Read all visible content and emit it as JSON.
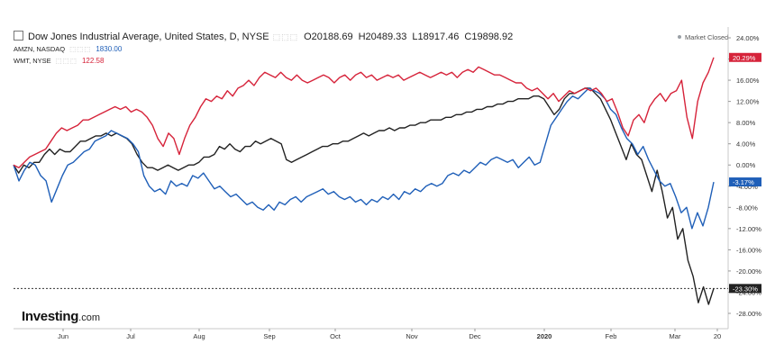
{
  "header": {
    "title": "Dow Jones Industrial Average, United States, D, NYSE",
    "open": "O20188.69",
    "high": "H20489.33",
    "low": "L18917.46",
    "close": "C19898.92"
  },
  "compare": [
    {
      "label": "AMZN, NASDAQ",
      "value": "1830.00",
      "color": "#1f5fb8"
    },
    {
      "label": "WMT, NYSE",
      "value": "122.58",
      "color": "#d6233a"
    }
  ],
  "market_status": "Market Closed",
  "brand": {
    "name": "Investing",
    "suffix": ".com"
  },
  "chart_data": {
    "type": "line",
    "y_axis_position": "right",
    "y_unit": "%",
    "ylim": [
      -28,
      24
    ],
    "y_ticks": [
      "24.00%",
      "20.00%",
      "16.00%",
      "12.00%",
      "8.00%",
      "4.00%",
      "0.00%",
      "-4.00%",
      "-8.00%",
      "-12.00%",
      "-16.00%",
      "-20.00%",
      "-24.00%",
      "-28.00%"
    ],
    "x_ticks": [
      "Jun",
      "Jul",
      "Aug",
      "Sep",
      "Oct",
      "Nov",
      "Dec",
      "2020",
      "Feb",
      "Mar",
      "20"
    ],
    "grid": false,
    "series": [
      {
        "name": "Dow Jones Industrial Average",
        "color": "#222222",
        "last_label": "-23.30%",
        "values": [
          0.0,
          -1.5,
          0.0,
          -0.5,
          0.5,
          0.5,
          2.0,
          3.0,
          2.0,
          3.0,
          2.5,
          2.5,
          3.5,
          4.5,
          4.5,
          5.0,
          5.5,
          5.5,
          6.0,
          5.5,
          6.0,
          5.5,
          5.0,
          4.0,
          2.0,
          0.5,
          -0.5,
          -0.5,
          -1.0,
          -0.5,
          0.0,
          -0.5,
          -1.0,
          -0.5,
          0.0,
          0.0,
          0.5,
          1.5,
          1.5,
          2.0,
          3.5,
          3.0,
          4.0,
          3.0,
          2.5,
          3.5,
          3.5,
          4.5,
          4.0,
          4.5,
          5.0,
          4.5,
          4.0,
          1.0,
          0.5,
          1.0,
          1.5,
          2.0,
          2.5,
          3.0,
          3.5,
          3.5,
          4.0,
          4.0,
          4.5,
          4.5,
          5.0,
          5.5,
          6.0,
          5.5,
          6.0,
          6.5,
          6.5,
          7.0,
          6.5,
          7.0,
          7.0,
          7.5,
          7.5,
          8.0,
          8.0,
          8.5,
          8.5,
          8.5,
          9.0,
          9.0,
          9.5,
          9.5,
          10.0,
          10.0,
          10.5,
          10.5,
          11.0,
          11.0,
          11.5,
          11.5,
          12.0,
          12.0,
          12.5,
          12.5,
          12.5,
          13.0,
          13.0,
          12.5,
          11.0,
          9.5,
          10.5,
          12.5,
          13.5,
          13.5,
          14.0,
          14.5,
          14.5,
          13.5,
          12.5,
          10.5,
          8.5,
          6.0,
          3.5,
          1.0,
          4.0,
          2.0,
          1.0,
          -2.0,
          -5.0,
          -1.0,
          -5.0,
          -10.0,
          -8.0,
          -14.0,
          -12.0,
          -18.0,
          -21.0,
          -26.0,
          -23.0,
          -26.3,
          -23.3
        ]
      },
      {
        "name": "AMZN, NASDAQ",
        "color": "#1f5fb8",
        "last_label": "-3.17%",
        "values": [
          0.0,
          -3.0,
          -1.0,
          0.5,
          0.0,
          -2.0,
          -3.0,
          -7.0,
          -4.5,
          -2.0,
          0.0,
          0.5,
          1.5,
          2.5,
          3.0,
          4.5,
          5.0,
          5.5,
          6.5,
          6.0,
          5.5,
          5.0,
          4.0,
          2.5,
          -2.0,
          -4.0,
          -5.0,
          -4.5,
          -5.5,
          -3.0,
          -4.0,
          -3.5,
          -4.0,
          -2.0,
          -2.5,
          -1.5,
          -3.0,
          -4.5,
          -4.0,
          -5.0,
          -6.0,
          -5.5,
          -6.5,
          -7.5,
          -7.0,
          -8.0,
          -8.5,
          -7.5,
          -8.5,
          -7.0,
          -7.5,
          -6.5,
          -6.0,
          -7.0,
          -6.0,
          -5.5,
          -5.0,
          -4.5,
          -5.5,
          -5.0,
          -6.0,
          -6.5,
          -6.0,
          -7.0,
          -6.5,
          -7.5,
          -6.5,
          -7.0,
          -6.0,
          -6.5,
          -5.5,
          -6.5,
          -5.0,
          -5.5,
          -4.5,
          -5.0,
          -4.0,
          -3.5,
          -4.0,
          -3.5,
          -2.0,
          -1.5,
          -2.0,
          -1.0,
          -1.5,
          -0.5,
          0.5,
          0.0,
          1.0,
          1.5,
          1.0,
          0.5,
          1.0,
          -0.5,
          0.5,
          1.5,
          0.0,
          0.5,
          4.0,
          7.5,
          9.0,
          10.5,
          12.0,
          13.0,
          12.5,
          13.5,
          14.5,
          14.0,
          13.5,
          12.5,
          10.5,
          9.5,
          7.0,
          5.0,
          4.0,
          2.0,
          3.5,
          1.0,
          -1.0,
          -3.0,
          -4.0,
          -3.5,
          -6.0,
          -9.0,
          -8.0,
          -12.0,
          -9.0,
          -11.5,
          -8.0,
          -3.2
        ]
      },
      {
        "name": "WMT, NYSE",
        "color": "#d6233a",
        "last_label": "20.29%",
        "values": [
          0.0,
          -0.5,
          0.5,
          1.5,
          2.0,
          2.5,
          3.0,
          4.5,
          6.0,
          7.0,
          6.5,
          7.0,
          7.5,
          8.5,
          8.5,
          9.0,
          9.5,
          10.0,
          10.5,
          11.0,
          10.5,
          11.0,
          10.0,
          10.5,
          10.0,
          9.0,
          7.5,
          5.0,
          3.5,
          6.0,
          5.0,
          2.0,
          5.0,
          7.5,
          9.0,
          11.0,
          12.5,
          12.0,
          13.0,
          12.5,
          14.0,
          13.0,
          14.5,
          15.0,
          16.0,
          15.0,
          16.5,
          17.5,
          17.0,
          16.5,
          17.5,
          16.5,
          16.0,
          17.0,
          16.0,
          15.5,
          16.0,
          16.5,
          17.0,
          16.5,
          15.5,
          16.5,
          17.0,
          16.0,
          17.0,
          17.5,
          16.5,
          17.0,
          16.0,
          16.5,
          17.0,
          16.5,
          17.0,
          16.0,
          16.5,
          17.0,
          17.5,
          17.0,
          16.5,
          17.0,
          17.5,
          17.0,
          17.5,
          16.5,
          17.5,
          18.0,
          17.5,
          18.5,
          18.0,
          17.5,
          17.0,
          17.0,
          16.5,
          16.0,
          15.5,
          15.5,
          14.5,
          14.0,
          14.5,
          13.5,
          12.5,
          13.5,
          12.0,
          13.0,
          14.0,
          13.5,
          14.0,
          14.5,
          14.0,
          14.5,
          13.5,
          12.0,
          12.5,
          10.0,
          7.0,
          5.5,
          8.5,
          9.5,
          8.0,
          11.0,
          12.5,
          13.5,
          12.0,
          13.5,
          14.0,
          16.0,
          9.0,
          5.0,
          12.0,
          15.5,
          17.5,
          20.3
        ]
      }
    ]
  }
}
